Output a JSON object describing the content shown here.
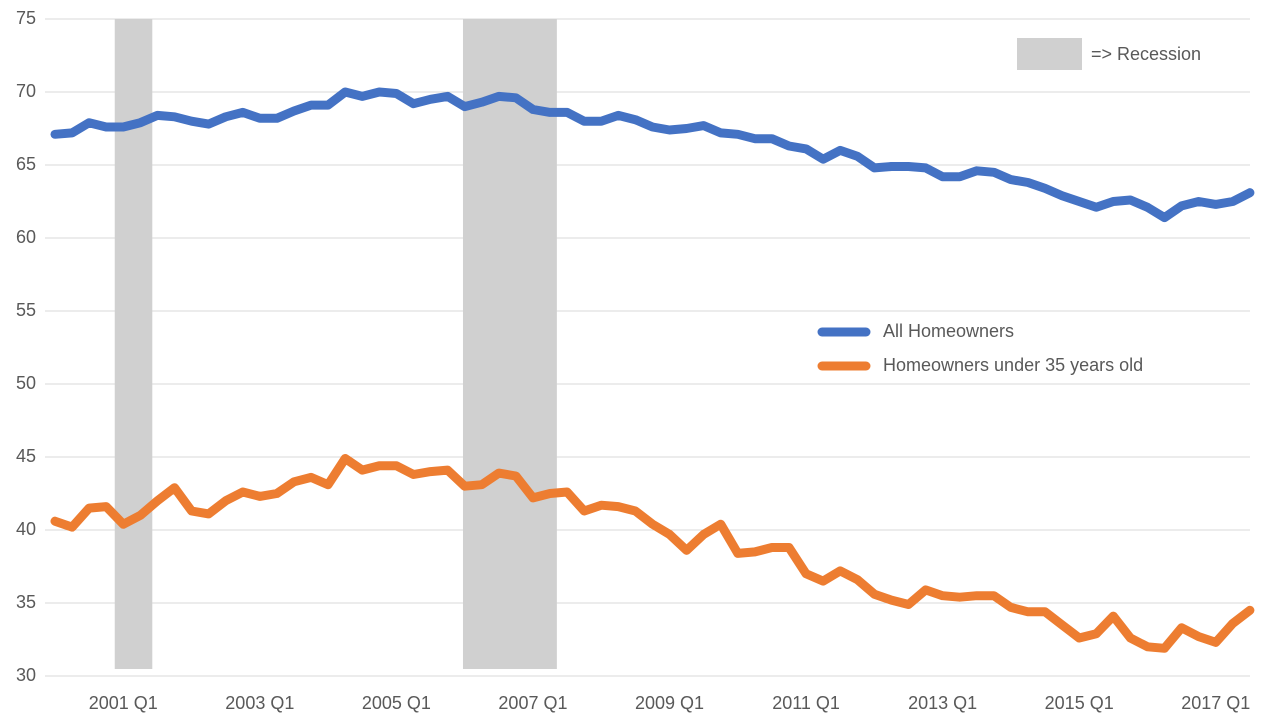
{
  "chart_data": {
    "type": "line",
    "categories": [
      null,
      null,
      null,
      null,
      "2001 Q1",
      null,
      null,
      null,
      null,
      null,
      null,
      null,
      "2003 Q1",
      null,
      null,
      null,
      null,
      null,
      null,
      null,
      "2005 Q1",
      null,
      null,
      null,
      null,
      null,
      null,
      null,
      "2007 Q1",
      null,
      null,
      null,
      null,
      null,
      null,
      null,
      "2009 Q1",
      null,
      null,
      null,
      null,
      null,
      null,
      null,
      "2011 Q1",
      null,
      null,
      null,
      null,
      null,
      null,
      null,
      "2013 Q1",
      null,
      null,
      null,
      null,
      null,
      null,
      null,
      "2015 Q1",
      null,
      null,
      null,
      null,
      null,
      null,
      null,
      "2017 Q1",
      null,
      null
    ],
    "series": [
      {
        "name": "All Homeowners",
        "color": "#4472c4",
        "values": [
          67.1,
          67.2,
          67.9,
          67.6,
          67.6,
          67.9,
          68.4,
          68.3,
          68.0,
          67.8,
          68.3,
          68.6,
          68.2,
          68.2,
          68.7,
          69.1,
          69.1,
          70.0,
          69.7,
          70.0,
          69.9,
          69.2,
          69.5,
          69.7,
          69.0,
          69.3,
          69.7,
          69.6,
          68.8,
          68.6,
          68.6,
          68.0,
          68.0,
          68.4,
          68.1,
          67.6,
          67.4,
          67.5,
          67.7,
          67.2,
          67.1,
          66.8,
          66.8,
          66.3,
          66.1,
          65.4,
          66.0,
          65.6,
          64.8,
          64.9,
          64.9,
          64.8,
          64.2,
          64.2,
          64.6,
          64.5,
          64.0,
          63.8,
          63.4,
          62.9,
          62.5,
          62.1,
          62.5,
          62.6,
          62.1,
          61.4,
          62.2,
          62.5,
          62.3,
          62.5,
          63.1
        ]
      },
      {
        "name": "Homeowners under 35 years old",
        "color": "#ed7d31",
        "values": [
          40.6,
          40.2,
          41.5,
          41.6,
          40.4,
          41.0,
          42.0,
          42.9,
          41.3,
          41.1,
          42.0,
          42.6,
          42.3,
          42.5,
          43.3,
          43.6,
          43.1,
          44.9,
          44.1,
          44.4,
          44.4,
          43.8,
          44.0,
          44.1,
          43.0,
          43.1,
          43.9,
          43.7,
          42.2,
          42.5,
          42.6,
          41.3,
          41.7,
          41.6,
          41.3,
          40.4,
          39.7,
          38.6,
          39.7,
          40.4,
          38.4,
          38.5,
          38.8,
          38.8,
          37.0,
          36.5,
          37.2,
          36.6,
          35.6,
          35.2,
          34.9,
          35.9,
          35.5,
          35.4,
          35.5,
          35.5,
          34.7,
          34.4,
          34.4,
          33.5,
          32.6,
          32.9,
          34.1,
          32.6,
          32.0,
          31.9,
          33.3,
          32.7,
          32.3,
          33.6,
          34.5
        ]
      }
    ],
    "recession_label": "=> Recession",
    "recession_color": "#d0d0d0",
    "recession_bands": [
      [
        3.5,
        5.7
      ],
      [
        23.9,
        29.4
      ]
    ],
    "ylim": [
      30,
      75
    ],
    "yticks": [
      30,
      35,
      40,
      45,
      50,
      55,
      60,
      65,
      70,
      75
    ],
    "grid": true
  }
}
